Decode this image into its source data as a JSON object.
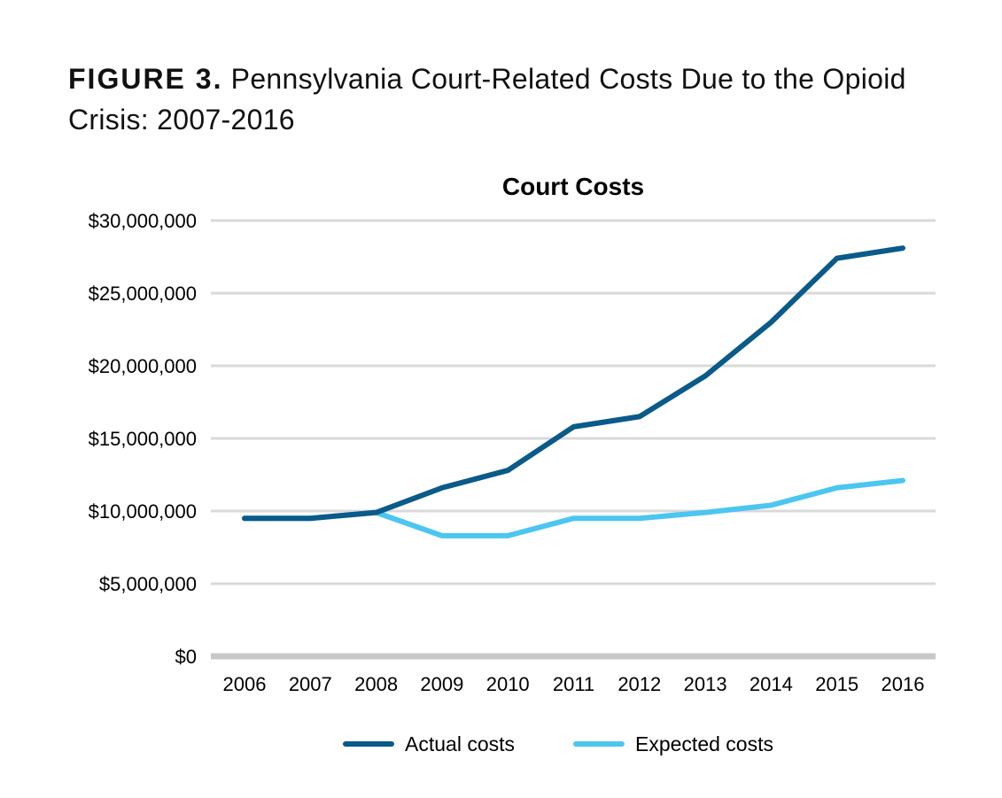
{
  "heading": {
    "label": "FIGURE 3.",
    "text": "Pennsylvania Court-Related Costs Due to the Opioid Crisis: 2007-2016"
  },
  "colors": {
    "actual": "#0a5a8a",
    "expected": "#4cc6f0",
    "grid": "#d9d9d9",
    "baseline": "#c8c8c8"
  },
  "chart_data": {
    "type": "line",
    "title": "Court Costs",
    "xlabel": "",
    "ylabel": "",
    "categories": [
      "2006",
      "2007",
      "2008",
      "2009",
      "2010",
      "2011",
      "2012",
      "2013",
      "2014",
      "2015",
      "2016"
    ],
    "ylim": [
      0,
      30000000
    ],
    "y_ticks": [
      0,
      5000000,
      10000000,
      15000000,
      20000000,
      25000000,
      30000000
    ],
    "y_tick_labels": [
      "$0",
      "$5,000,000",
      "$10,000,000",
      "$15,000,000",
      "$20,000,000",
      "$25,000,000",
      "$30,000,000"
    ],
    "grid": true,
    "legend_position": "bottom-center",
    "series": [
      {
        "name": "Actual costs",
        "color_key": "actual",
        "values": [
          9500000,
          9500000,
          9900000,
          11600000,
          12800000,
          15800000,
          16500000,
          19300000,
          23000000,
          27400000,
          28100000
        ]
      },
      {
        "name": "Expected costs",
        "color_key": "expected",
        "values": [
          9500000,
          9500000,
          9900000,
          8300000,
          8300000,
          9500000,
          9500000,
          9900000,
          10400000,
          11600000,
          12100000
        ]
      }
    ]
  }
}
